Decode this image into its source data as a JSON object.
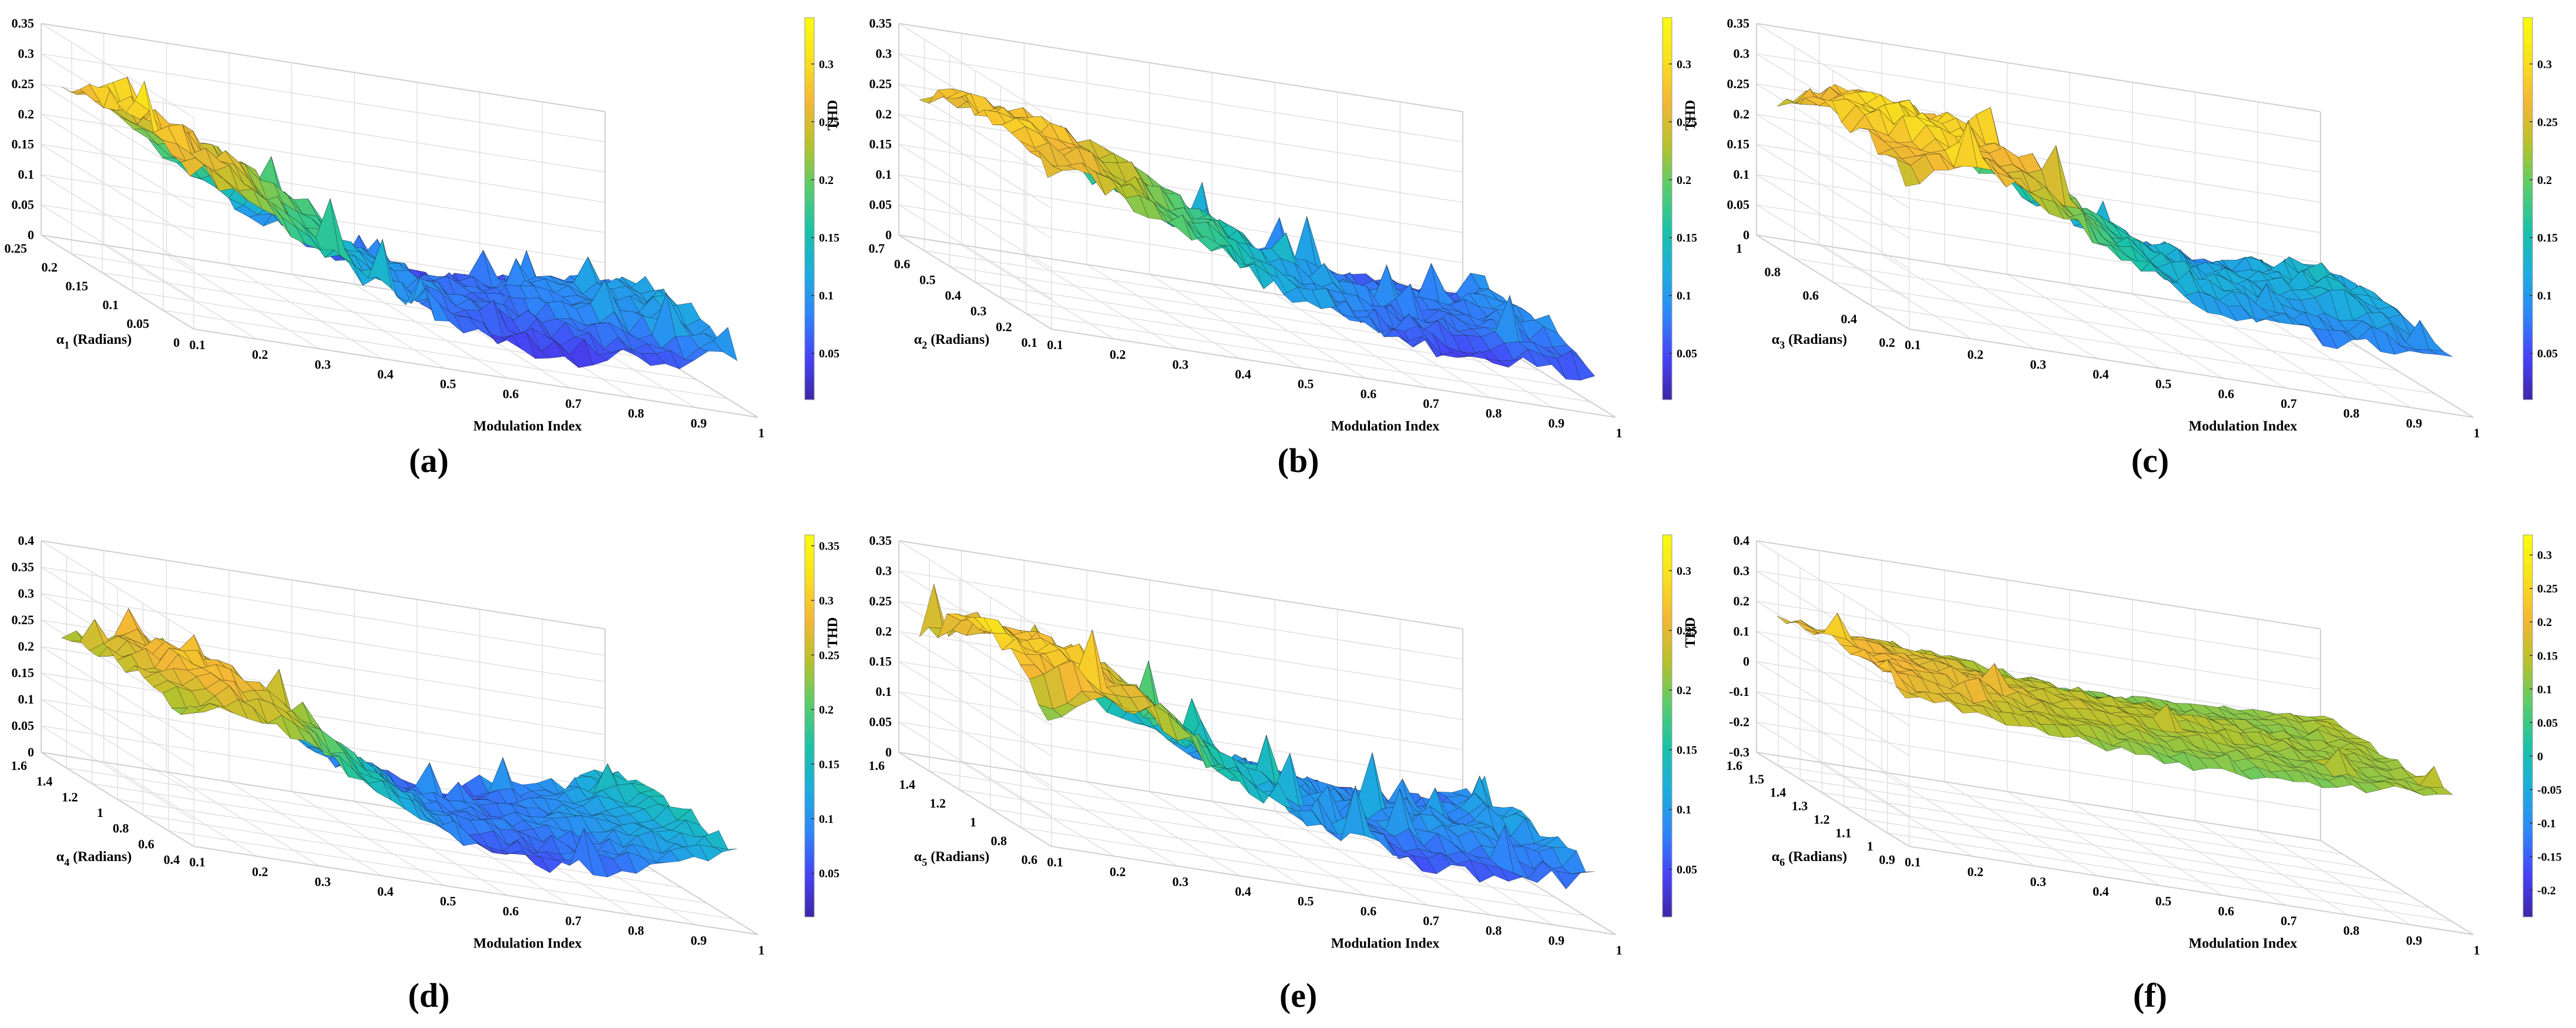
{
  "figure": {
    "colormap": [
      "#3e26a8",
      "#4743f6",
      "#2e86f8",
      "#1cadde",
      "#1ac2a8",
      "#58cc6c",
      "#b6c22c",
      "#f3b735",
      "#f9e01f",
      "#f9fb0e"
    ],
    "mesh_color": "#1a1a1a"
  },
  "chart_data": [
    {
      "type": "surface",
      "panel_label": "(a)",
      "zlabel": "THD",
      "ylabel_symbol": "α",
      "ylabel_sub": "1",
      "ylabel_rest": " (Radians)",
      "xlabel": "Modulation Index",
      "x_ticks": [
        "0.1",
        "0.2",
        "0.3",
        "0.4",
        "0.5",
        "0.6",
        "0.7",
        "0.8",
        "0.9",
        "1"
      ],
      "y_ticks": [
        "0.25",
        "0.2",
        "0.15",
        "0.1",
        "0.05",
        "0"
      ],
      "z_ticks": [
        "0",
        "0.05",
        "0.1",
        "0.15",
        "0.2",
        "0.25",
        "0.3",
        "0.35"
      ],
      "colorbar_ticks": [
        "0.05",
        "0.1",
        "0.15",
        "0.2",
        "0.25",
        "0.3"
      ],
      "colorbar_range": [
        0.01,
        0.34
      ],
      "xlim": [
        0.1,
        1
      ],
      "ylim": [
        0,
        0.25
      ],
      "zlim": [
        0,
        0.35
      ],
      "profile_m": [
        0.1,
        0.2,
        0.3,
        0.4,
        0.5,
        0.6,
        0.7,
        0.8,
        0.9,
        1.0
      ],
      "thd_profile": [
        0.26,
        0.22,
        0.16,
        0.11,
        0.07,
        0.05,
        0.04,
        0.05,
        0.06,
        0.08
      ],
      "ridge_profile": [
        0.3,
        0.27,
        0.22,
        0.16,
        0.1,
        0.08,
        0.07,
        0.09,
        0.1,
        0.12
      ]
    },
    {
      "type": "surface",
      "panel_label": "(b)",
      "zlabel": "THD",
      "ylabel_symbol": "α",
      "ylabel_sub": "2",
      "ylabel_rest": " (Radians)",
      "xlabel": "Modulation Index",
      "x_ticks": [
        "0.1",
        "0.2",
        "0.3",
        "0.4",
        "0.5",
        "0.6",
        "0.7",
        "0.8",
        "0.9",
        "1"
      ],
      "y_ticks": [
        "0.7",
        "0.6",
        "0.5",
        "0.4",
        "0.3",
        "0.2",
        "0.1"
      ],
      "z_ticks": [
        "0",
        "0.05",
        "0.1",
        "0.15",
        "0.2",
        "0.25",
        "0.3",
        "0.35"
      ],
      "colorbar_ticks": [
        "0.05",
        "0.1",
        "0.15",
        "0.2",
        "0.25",
        "0.3"
      ],
      "colorbar_range": [
        0.01,
        0.34
      ],
      "xlim": [
        0.1,
        1
      ],
      "ylim": [
        0.1,
        0.7
      ],
      "zlim": [
        0,
        0.35
      ],
      "profile_m": [
        0.1,
        0.2,
        0.3,
        0.4,
        0.5,
        0.6,
        0.7,
        0.8,
        0.9,
        1.0
      ],
      "thd_profile": [
        0.25,
        0.24,
        0.2,
        0.15,
        0.11,
        0.08,
        0.06,
        0.05,
        0.05,
        0.06
      ],
      "ridge_profile": [
        0.29,
        0.28,
        0.25,
        0.2,
        0.15,
        0.11,
        0.09,
        0.08,
        0.08,
        0.1
      ]
    },
    {
      "type": "surface",
      "panel_label": "(c)",
      "zlabel": "THD",
      "ylabel_symbol": "α",
      "ylabel_sub": "3",
      "ylabel_rest": " (Radians)",
      "xlabel": "Modulation Index",
      "x_ticks": [
        "0.1",
        "0.2",
        "0.3",
        "0.4",
        "0.5",
        "0.6",
        "0.7",
        "0.8",
        "0.9",
        "1"
      ],
      "y_ticks": [
        "1",
        "0.8",
        "0.6",
        "0.4",
        "0.2"
      ],
      "z_ticks": [
        "0",
        "0.05",
        "0.1",
        "0.15",
        "0.2",
        "0.25",
        "0.3",
        "0.35"
      ],
      "colorbar_ticks": [
        "0.05",
        "0.1",
        "0.15",
        "0.2",
        "0.25",
        "0.3"
      ],
      "colorbar_range": [
        0.01,
        0.34
      ],
      "xlim": [
        0.1,
        1
      ],
      "ylim": [
        0.2,
        1
      ],
      "zlim": [
        0,
        0.35
      ],
      "profile_m": [
        0.1,
        0.2,
        0.3,
        0.4,
        0.5,
        0.6,
        0.7,
        0.8,
        0.9,
        1.0
      ],
      "thd_profile": [
        0.24,
        0.27,
        0.25,
        0.2,
        0.15,
        0.11,
        0.09,
        0.08,
        0.08,
        0.07
      ],
      "ridge_profile": [
        0.28,
        0.31,
        0.29,
        0.24,
        0.18,
        0.14,
        0.12,
        0.12,
        0.15,
        0.1
      ]
    },
    {
      "type": "surface",
      "panel_label": "(d)",
      "zlabel": "THD",
      "ylabel_symbol": "α",
      "ylabel_sub": "4",
      "ylabel_rest": " (Radians)",
      "xlabel": "Modulation Index",
      "x_ticks": [
        "0.1",
        "0.2",
        "0.3",
        "0.4",
        "0.5",
        "0.6",
        "0.7",
        "0.8",
        "0.9",
        "1"
      ],
      "y_ticks": [
        "1.6",
        "1.4",
        "1.2",
        "1",
        "0.8",
        "0.6",
        "0.4"
      ],
      "z_ticks": [
        "0",
        "0.05",
        "0.1",
        "0.15",
        "0.2",
        "0.25",
        "0.3",
        "0.35",
        "0.4"
      ],
      "colorbar_ticks": [
        "0.05",
        "0.1",
        "0.15",
        "0.2",
        "0.25",
        "0.3",
        "0.35"
      ],
      "colorbar_range": [
        0.01,
        0.36
      ],
      "xlim": [
        0.1,
        1
      ],
      "ylim": [
        0.4,
        1.6
      ],
      "zlim": [
        0,
        0.4
      ],
      "profile_m": [
        0.1,
        0.2,
        0.3,
        0.4,
        0.5,
        0.6,
        0.7,
        0.8,
        0.9,
        1.0
      ],
      "thd_profile": [
        0.23,
        0.26,
        0.22,
        0.16,
        0.1,
        0.07,
        0.06,
        0.07,
        0.1,
        0.14
      ],
      "ridge_profile": [
        0.26,
        0.3,
        0.27,
        0.2,
        0.13,
        0.09,
        0.08,
        0.09,
        0.12,
        0.16
      ]
    },
    {
      "type": "surface",
      "panel_label": "(e)",
      "zlabel": "THD",
      "ylabel_symbol": "α",
      "ylabel_sub": "5",
      "ylabel_rest": " (Radians)",
      "xlabel": "Modulation Index",
      "x_ticks": [
        "0.1",
        "0.2",
        "0.3",
        "0.4",
        "0.5",
        "0.6",
        "0.7",
        "0.8",
        "0.9",
        "1"
      ],
      "y_ticks": [
        "1.6",
        "1.4",
        "1.2",
        "1",
        "0.8",
        "0.6"
      ],
      "z_ticks": [
        "0",
        "0.05",
        "0.1",
        "0.15",
        "0.2",
        "0.25",
        "0.3",
        "0.35"
      ],
      "colorbar_ticks": [
        "0.05",
        "0.1",
        "0.15",
        "0.2",
        "0.25",
        "0.3"
      ],
      "colorbar_range": [
        0.01,
        0.33
      ],
      "xlim": [
        0.1,
        1
      ],
      "ylim": [
        0.6,
        1.6
      ],
      "zlim": [
        0,
        0.35
      ],
      "profile_m": [
        0.1,
        0.2,
        0.3,
        0.4,
        0.5,
        0.6,
        0.7,
        0.8,
        0.9,
        1.0
      ],
      "thd_profile": [
        0.2,
        0.25,
        0.22,
        0.15,
        0.1,
        0.08,
        0.06,
        0.05,
        0.06,
        0.08
      ],
      "ridge_profile": [
        0.3,
        0.27,
        0.25,
        0.19,
        0.13,
        0.1,
        0.09,
        0.1,
        0.09,
        0.11
      ]
    },
    {
      "type": "surface",
      "panel_label": "(f)",
      "zlabel": "THD",
      "ylabel_symbol": "α",
      "ylabel_sub": "6",
      "ylabel_rest": " (Radians)",
      "xlabel": "Modulation Index",
      "x_ticks": [
        "0.1",
        "0.2",
        "0.3",
        "0.4",
        "0.5",
        "0.6",
        "0.7",
        "0.8",
        "0.9",
        "1"
      ],
      "y_ticks": [
        "1.6",
        "1.5",
        "1.4",
        "1.3",
        "1.2",
        "1.1",
        "1",
        "0.9"
      ],
      "z_ticks": [
        "-0.3",
        "-0.2",
        "-0.1",
        "0",
        "0.1",
        "0.2",
        "0.3",
        "0.4"
      ],
      "colorbar_ticks": [
        "-0.2",
        "-0.15",
        "-0.1",
        "-0.05",
        "0",
        "0.05",
        "0.1",
        "0.15",
        "0.2",
        "0.25",
        "0.3"
      ],
      "colorbar_range": [
        -0.24,
        0.33
      ],
      "xlim": [
        0.1,
        1
      ],
      "ylim": [
        0.9,
        1.6
      ],
      "zlim": [
        -0.3,
        0.4
      ],
      "profile_m": [
        0.1,
        0.2,
        0.3,
        0.4,
        0.5,
        0.6,
        0.7,
        0.8,
        0.9,
        1.0
      ],
      "thd_profile": [
        0.18,
        0.16,
        0.14,
        0.12,
        0.1,
        0.09,
        0.09,
        0.1,
        0.12,
        0.13
      ],
      "ridge_profile": [
        0.22,
        0.2,
        0.18,
        0.17,
        0.16,
        0.15,
        0.14,
        0.13,
        0.12,
        0.13
      ]
    }
  ]
}
